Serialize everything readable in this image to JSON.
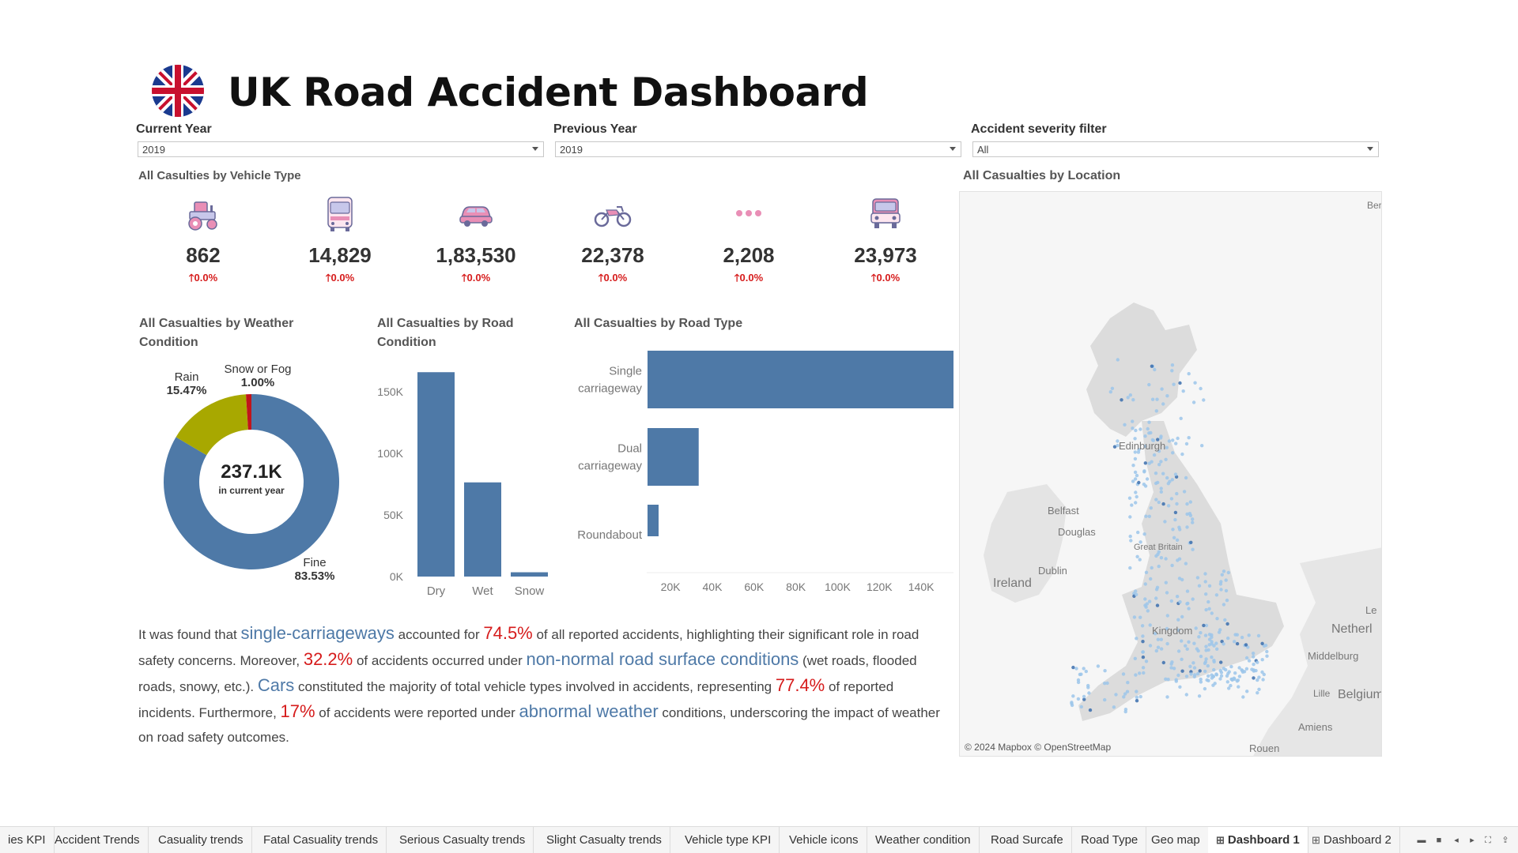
{
  "header": {
    "title": "UK Road Accident Dashboard",
    "flag_icon": "uk-flag-icon"
  },
  "filters": [
    {
      "label": "Current Year",
      "value": "2019"
    },
    {
      "label": "Previous Year",
      "value": "2019"
    },
    {
      "label": "Accident severity filter",
      "value": "All"
    }
  ],
  "vehicle": {
    "title": "All Casulties by Vehicle Type",
    "items": [
      {
        "icon": "tractor-icon",
        "value": "862",
        "delta": "🡑0.0%"
      },
      {
        "icon": "bus-icon",
        "value": "14,829",
        "delta": "🡑0.0%"
      },
      {
        "icon": "car-icon",
        "value": "1,83,530",
        "delta": "🡑0.0%"
      },
      {
        "icon": "motorcycle-icon",
        "value": "22,378",
        "delta": "🡑0.0%"
      },
      {
        "icon": "more-icon",
        "value": "2,208",
        "delta": "🡑0.0%"
      },
      {
        "icon": "van-icon",
        "value": "23,973",
        "delta": "🡑0.0%"
      }
    ]
  },
  "weather": {
    "title_line1": "All Casualties by Weather",
    "title_line2": "Condition",
    "center_value": "237.1K",
    "center_sub": "in current year",
    "labels": [
      {
        "name": "Rain",
        "pct": "15.47%"
      },
      {
        "name": "Snow or Fog",
        "pct": "1.00%"
      },
      {
        "name": "Fine",
        "pct": "83.53%"
      }
    ]
  },
  "road_condition": {
    "title_line1": "All Casualties by Road",
    "title_line2": "Condition"
  },
  "road_type": {
    "title": "All Casualties by Road Type"
  },
  "location": {
    "title": "All Casualties by Location"
  },
  "map": {
    "labels": [
      "Edinburgh",
      "Belfast",
      "Douglas",
      "Dublin",
      "Ireland",
      "Great Britain",
      "Kingdom",
      "Netherl",
      "Middelburg",
      "Lille",
      "Belgium",
      "Amiens",
      "Rouen",
      "Le",
      "Ber"
    ],
    "credit": "© 2024 Mapbox © OpenStreetMap"
  },
  "narrative": {
    "p1": "It was found that ",
    "h1": "single-carriageways",
    "p2": " accounted for ",
    "h2": "74.5%",
    "p3": " of all reported accidents, highlighting their significant role in road safety concerns. Moreover, ",
    "h3": "32.2%",
    "p4": " of accidents occurred under ",
    "h4": "non-normal road surface conditions",
    "p5": " (wet roads, flooded roads, snowy, etc.). ",
    "h5": "Cars",
    "p6": " constituted the majority of total vehicle types involved in accidents, representing ",
    "h6": "77.4%",
    "p7": " of reported incidents. Furthermore, ",
    "h7": "17%",
    "p8": " of accidents were reported under ",
    "h8": "abnormal weather",
    "p9": " conditions, underscoring the impact of weather on road safety outcomes."
  },
  "tabs": [
    {
      "label": "ies KPI",
      "active": false
    },
    {
      "label": "Accident Trends",
      "active": false
    },
    {
      "label": "Casuality trends",
      "active": false
    },
    {
      "label": "Fatal Casuality trends",
      "active": false
    },
    {
      "label": "Serious Casualty trends",
      "active": false
    },
    {
      "label": "Slight Casualty trends",
      "active": false
    },
    {
      "label": "Vehicle type KPI",
      "active": false
    },
    {
      "label": "Vehicle icons",
      "active": false
    },
    {
      "label": "Weather condition",
      "active": false
    },
    {
      "label": "Road Surcafe",
      "active": false
    },
    {
      "label": "Road Type",
      "active": false
    },
    {
      "label": "Geo map",
      "active": false
    },
    {
      "label": "Dashboard 1",
      "active": true
    },
    {
      "label": "Dashboard 2",
      "active": false
    }
  ],
  "colors": {
    "blue": "#4e79a7",
    "olive": "#a8a800",
    "red": "#c0151b",
    "kpi_red": "#d61c1c"
  },
  "chart_data": [
    {
      "type": "pie",
      "categories": [
        "Fine",
        "Rain",
        "Snow or Fog"
      ],
      "values": [
        83.53,
        15.47,
        1.0
      ],
      "colors": [
        "#4e79a7",
        "#a8a800",
        "#c0151b"
      ]
    },
    {
      "type": "bar",
      "orientation": "vertical",
      "categories": [
        "Dry",
        "Wet",
        "Snow"
      ],
      "values": [
        166000,
        76500,
        3500
      ],
      "ylim": [
        0,
        170000
      ],
      "yticks": [
        0,
        50000,
        100000,
        150000
      ],
      "ytick_labels": [
        "0K",
        "50K",
        "100K",
        "150K"
      ]
    },
    {
      "type": "bar",
      "orientation": "horizontal",
      "categories": [
        "Single carriageway",
        "Dual carriageway",
        "Roundabout"
      ],
      "category_lines": [
        [
          "Single",
          "carriageway"
        ],
        [
          "Dual",
          "carriageway"
        ],
        [
          "Roundabout"
        ]
      ],
      "values": [
        158500,
        36500,
        6500
      ],
      "xlim": [
        12000,
        158500
      ],
      "xticks": [
        20000,
        40000,
        60000,
        80000,
        100000,
        120000,
        140000
      ],
      "xtick_labels": [
        "20K",
        "40K",
        "60K",
        "80K",
        "100K",
        "120K",
        "140K"
      ]
    }
  ]
}
